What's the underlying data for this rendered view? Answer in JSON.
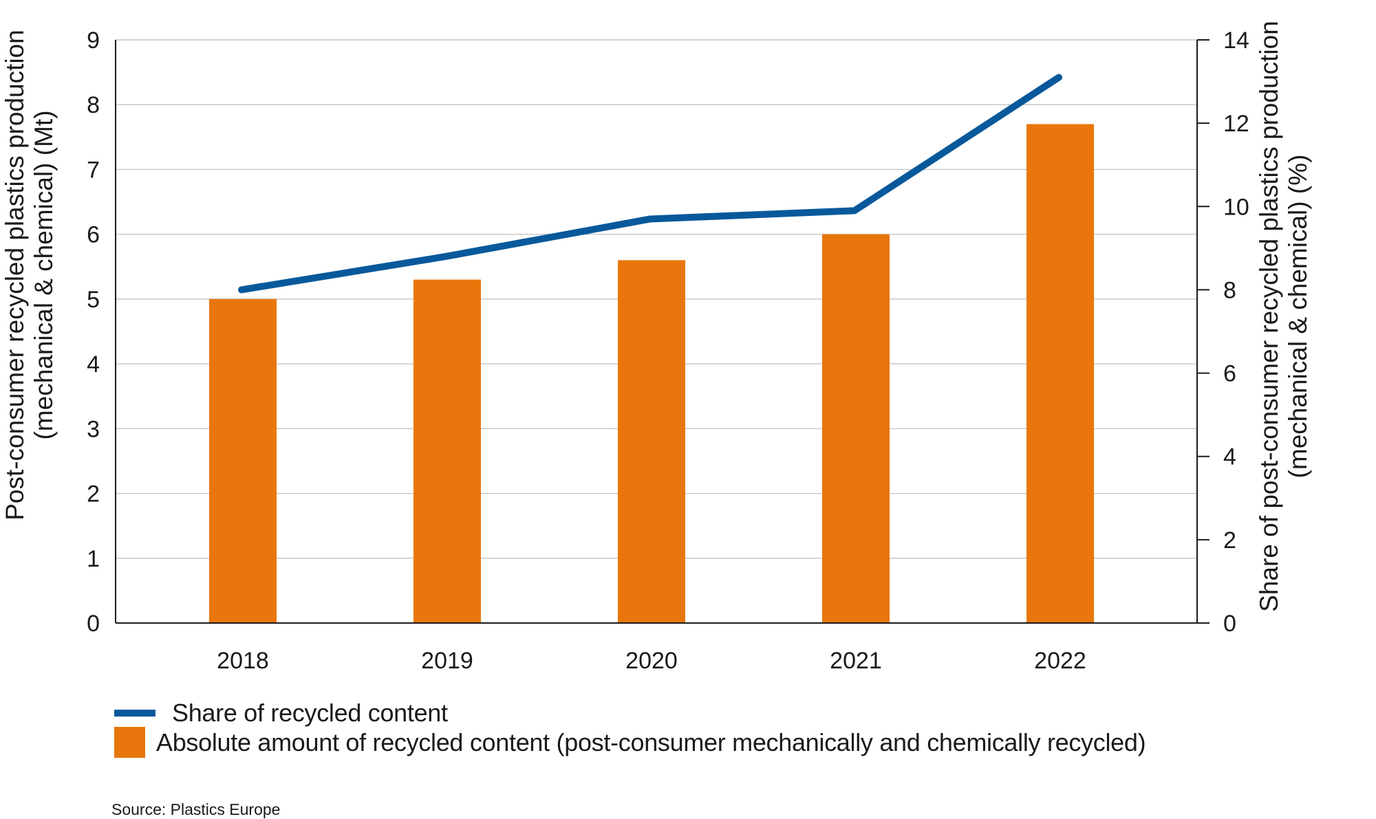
{
  "chart_data": {
    "type": "bar",
    "categories": [
      "2018",
      "2019",
      "2020",
      "2021",
      "2022"
    ],
    "series": [
      {
        "name": "Absolute amount of recycled content (post-consumer mechanically and chemically recycled)",
        "type": "bar",
        "axis": "left",
        "color": "#e8760c",
        "values": [
          5.0,
          5.3,
          5.6,
          6.0,
          7.7
        ]
      },
      {
        "name": "Share of recycled content",
        "type": "line",
        "axis": "right",
        "color": "#07599b",
        "values": [
          8.0,
          8.8,
          9.7,
          9.9,
          13.1
        ]
      }
    ],
    "y_left": {
      "label": "Post-consumer recycled plastics production\n(mechanical & chemical) (Mt)",
      "ylim": [
        0,
        9
      ],
      "ticks": [
        "0",
        "1",
        "2",
        "3",
        "4",
        "5",
        "6",
        "7",
        "8",
        "9"
      ]
    },
    "y_right": {
      "label": "Share of post-consumer recycled plastics production\n(mechanical & chemical) (%)",
      "ylim": [
        0,
        14
      ],
      "ticks": [
        "0",
        "2",
        "4",
        "6",
        "8",
        "10",
        "12",
        "14"
      ]
    },
    "grid": true,
    "legend_position": "bottom-left"
  },
  "legend": {
    "line_label": "Share of recycled content",
    "bar_label": "Absolute amount of recycled content (post-consumer mechanically and chemically recycled)"
  },
  "source": "Source: Plastics Europe"
}
